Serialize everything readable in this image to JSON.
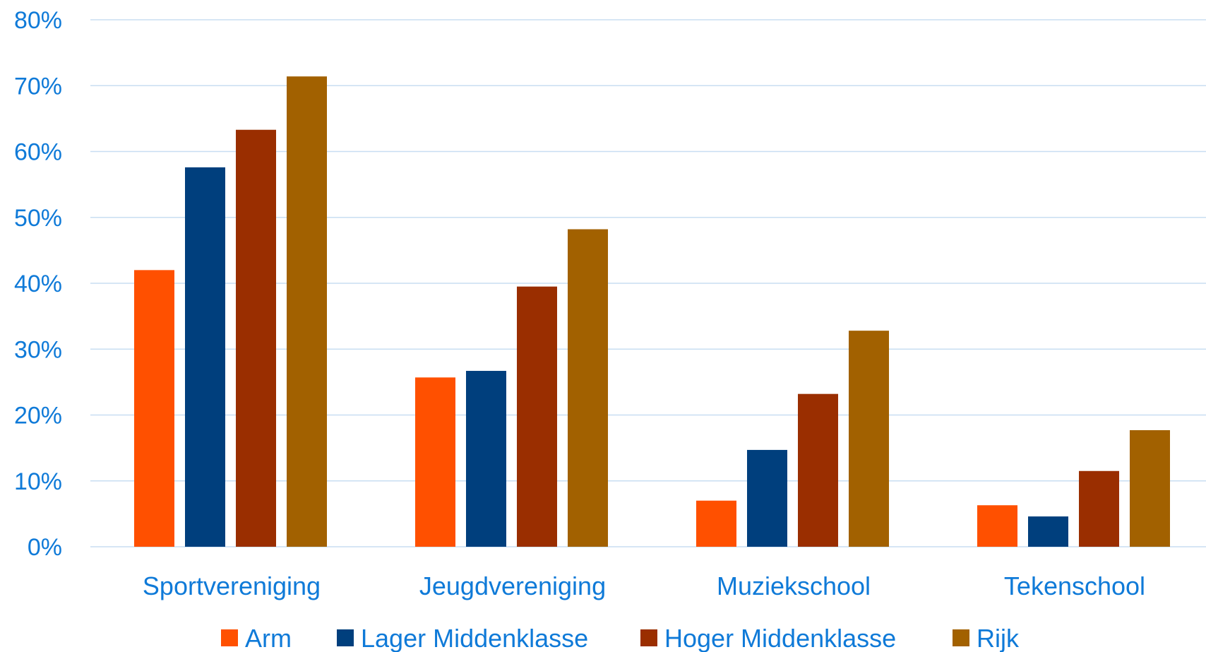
{
  "chart_data": {
    "type": "bar",
    "title": "",
    "xlabel": "",
    "ylabel": "",
    "categories": [
      "Sportvereniging",
      "Jeugdvereniging",
      "Muziekschool",
      "Tekenschool"
    ],
    "series": [
      {
        "name": "Arm",
        "color": "#ff5000",
        "values": [
          0.42,
          0.257,
          0.07,
          0.063
        ]
      },
      {
        "name": "Lager Middenklasse",
        "color": "#003f7d",
        "values": [
          0.576,
          0.267,
          0.147,
          0.046
        ]
      },
      {
        "name": "Hoger Middenklasse",
        "color": "#9a2e00",
        "values": [
          0.633,
          0.395,
          0.232,
          0.115
        ]
      },
      {
        "name": "Rijk",
        "color": "#a26100",
        "values": [
          0.714,
          0.482,
          0.328,
          0.177
        ]
      }
    ],
    "ylim": [
      0,
      0.8
    ],
    "yticks": [
      0,
      0.1,
      0.2,
      0.3,
      0.4,
      0.5,
      0.6,
      0.7,
      0.8
    ],
    "ytick_labels": [
      "0%",
      "10%",
      "20%",
      "30%",
      "40%",
      "50%",
      "60%",
      "70%",
      "80%"
    ],
    "grid": true,
    "legend_position": "bottom",
    "label_color": "#0f7ad8",
    "grid_color": "#c8def2"
  }
}
